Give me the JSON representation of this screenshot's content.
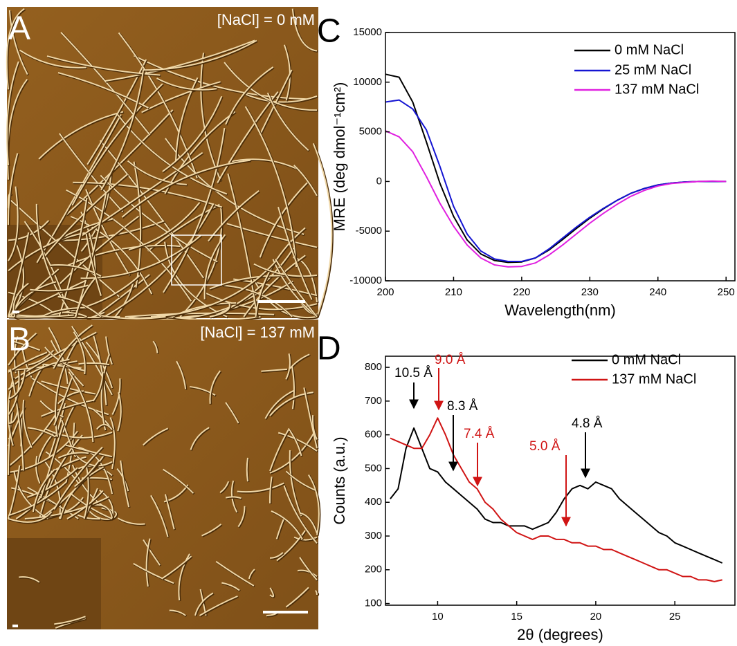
{
  "panels": [
    {
      "label": "A",
      "annotation": "[NaCl] = 0 mM"
    },
    {
      "label": "B",
      "annotation": "[NaCl] = 137 mM"
    }
  ],
  "chart_data": [
    {
      "type": "line",
      "label": "C",
      "x_label": "Wavelength(nm)",
      "y_label": "MRE (deg dmol⁻¹cm²)",
      "x": [
        200,
        202,
        204,
        206,
        208,
        210,
        212,
        214,
        216,
        218,
        220,
        222,
        224,
        226,
        228,
        230,
        232,
        234,
        236,
        238,
        240,
        242,
        244,
        246,
        248,
        250
      ],
      "series": [
        {
          "name": "0 mM NaCl",
          "color": "#000000",
          "values": [
            10800,
            10500,
            8000,
            4000,
            -200,
            -3500,
            -5900,
            -7300,
            -7950,
            -8150,
            -8100,
            -7700,
            -6900,
            -5850,
            -4750,
            -3700,
            -2750,
            -1900,
            -1200,
            -700,
            -350,
            -150,
            -50,
            0,
            0,
            0
          ]
        },
        {
          "name": "25 mM NaCl",
          "color": "#1414d2",
          "values": [
            8000,
            8200,
            7300,
            5200,
            1500,
            -2500,
            -5300,
            -7000,
            -7800,
            -8050,
            -8050,
            -7700,
            -6800,
            -5700,
            -4600,
            -3600,
            -2700,
            -1900,
            -1200,
            -700,
            -350,
            -150,
            -50,
            0,
            0,
            0
          ]
        },
        {
          "name": "137 mM NaCl",
          "color": "#e020e0",
          "values": [
            5100,
            4500,
            3000,
            500,
            -2200,
            -4500,
            -6400,
            -7700,
            -8400,
            -8600,
            -8550,
            -8200,
            -7400,
            -6400,
            -5300,
            -4200,
            -3200,
            -2300,
            -1500,
            -900,
            -450,
            -200,
            -100,
            0,
            50,
            0
          ]
        }
      ],
      "xlim": [
        200,
        251.3
      ],
      "xticks": [
        200,
        210,
        220,
        230,
        240,
        250
      ],
      "ylim": [
        -10000,
        15000
      ],
      "yticks": [
        -10000,
        -5000,
        0,
        5000,
        10000,
        15000
      ]
    },
    {
      "type": "line",
      "label": "D",
      "x_label": "2θ (degrees)",
      "y_label": "Counts (a.u.)",
      "x": [
        7,
        7.5,
        8,
        8.5,
        9,
        9.5,
        10,
        10.5,
        11,
        11.5,
        12,
        12.5,
        13,
        13.5,
        14,
        14.5,
        15,
        15.5,
        16,
        16.5,
        17,
        17.5,
        18,
        18.5,
        19,
        19.5,
        20,
        20.5,
        21,
        21.5,
        22,
        22.5,
        23,
        23.5,
        24,
        24.5,
        25,
        25.5,
        26,
        26.5,
        27,
        27.5,
        28
      ],
      "series": [
        {
          "name": "0 mM NaCl",
          "color": "#000000",
          "values": [
            410,
            440,
            560,
            620,
            560,
            500,
            490,
            460,
            440,
            420,
            400,
            380,
            350,
            340,
            340,
            330,
            330,
            330,
            320,
            330,
            340,
            370,
            410,
            440,
            450,
            440,
            460,
            450,
            440,
            410,
            390,
            370,
            350,
            330,
            310,
            300,
            280,
            270,
            260,
            250,
            240,
            230,
            220
          ]
        },
        {
          "name": "137 mM NaCl",
          "color": "#d01414",
          "values": [
            590,
            580,
            570,
            560,
            560,
            600,
            650,
            600,
            540,
            500,
            460,
            440,
            400,
            380,
            350,
            330,
            310,
            300,
            290,
            300,
            300,
            290,
            290,
            280,
            280,
            270,
            270,
            260,
            260,
            250,
            240,
            230,
            220,
            210,
            200,
            200,
            190,
            180,
            180,
            170,
            170,
            165,
            170
          ]
        }
      ],
      "annotations": [
        {
          "text": "10.5 Å",
          "color": "#000000"
        },
        {
          "text": "9.0 Å",
          "color": "#d01414"
        },
        {
          "text": "8.3 Å",
          "color": "#000000"
        },
        {
          "text": "7.4 Å",
          "color": "#d01414"
        },
        {
          "text": "5.0 Å",
          "color": "#d01414"
        },
        {
          "text": "4.8 Å",
          "color": "#000000"
        }
      ],
      "xlim": [
        6.7,
        28.8
      ],
      "xticks": [
        10,
        15,
        20,
        25
      ],
      "ylim": [
        95,
        833
      ],
      "yticks": [
        100,
        200,
        300,
        400,
        500,
        600,
        700,
        800
      ]
    }
  ]
}
